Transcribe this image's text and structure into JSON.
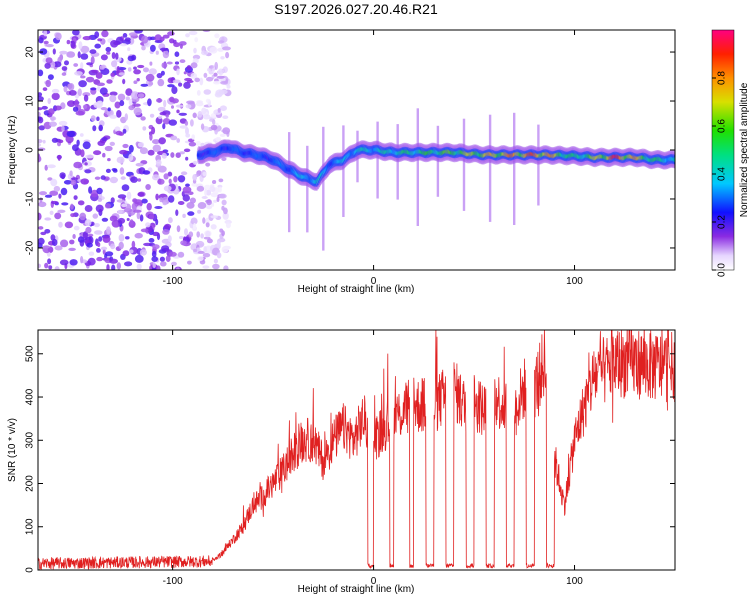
{
  "title": "S197.2026.027.20.46.R21",
  "chart_data": [
    {
      "type": "heatmap",
      "name": "spectrogram",
      "xlabel": "Height of straight line (km)",
      "ylabel": "Frequency (Hz)",
      "xlim": [
        -167,
        150
      ],
      "ylim": [
        -24.5,
        24.5
      ],
      "xticks": [
        -100,
        0,
        100
      ],
      "yticks": [
        -20,
        -10,
        0,
        10,
        20
      ],
      "colorbar": {
        "label": "Normalized spectral amplitude",
        "range": [
          0,
          1
        ],
        "ticks": [
          "0.0",
          "0.2",
          "0.4",
          "0.6",
          "0.8"
        ],
        "tick_values": [
          0.0,
          0.2,
          0.4,
          0.6,
          0.8
        ]
      },
      "noise_region": {
        "x_start": -167,
        "x_end": -80,
        "amplitude": 0.15
      },
      "track": {
        "x": [
          -87,
          -80,
          -72,
          -65,
          -58,
          -50,
          -42,
          -35,
          -28,
          -22,
          -15,
          -8,
          0,
          10,
          20,
          30,
          40,
          55,
          70,
          85,
          100,
          110,
          120,
          130,
          140,
          150
        ],
        "freq": [
          -1,
          -0.5,
          0.5,
          -0.5,
          -1,
          -2,
          -4,
          -5.5,
          -6.5,
          -3,
          -2,
          0,
          0,
          -0.5,
          -0.5,
          -0.5,
          -0.5,
          -1,
          -1,
          -1,
          -1.2,
          -1.5,
          -1.5,
          -1.5,
          -2,
          -2
        ],
        "amplitude": [
          0.25,
          0.3,
          0.3,
          0.3,
          0.3,
          0.3,
          0.35,
          0.4,
          0.45,
          0.35,
          0.4,
          0.45,
          0.45,
          0.5,
          0.55,
          0.6,
          0.65,
          0.75,
          0.85,
          0.9,
          0.5,
          0.7,
          0.95,
          0.8,
          0.55,
          0.45
        ]
      }
    },
    {
      "type": "line",
      "name": "snr",
      "xlabel": "Height of straight line (km)",
      "ylabel": "SNR (10 * v/v)",
      "xlim": [
        -167,
        150
      ],
      "ylim": [
        0,
        555
      ],
      "xticks": [
        -100,
        0,
        100
      ],
      "yticks": [
        0,
        100,
        200,
        300,
        400,
        500
      ],
      "color": "#e02020",
      "series": [
        {
          "name": "SNR envelope",
          "x": [
            -167,
            -80,
            -75,
            -70,
            -65,
            -60,
            -55,
            -50,
            -45,
            -40,
            -35,
            -30,
            -25,
            -20,
            -15,
            -10,
            -5,
            0,
            5,
            10,
            15,
            20,
            25,
            30,
            35,
            40,
            45,
            50,
            55,
            60,
            65,
            70,
            75,
            80,
            85,
            90,
            95,
            100,
            105,
            110,
            115,
            120,
            130,
            140,
            150
          ],
          "y": [
            15,
            20,
            40,
            70,
            100,
            150,
            170,
            200,
            230,
            270,
            300,
            300,
            250,
            300,
            330,
            300,
            350,
            300,
            330,
            350,
            370,
            380,
            380,
            380,
            400,
            420,
            380,
            390,
            370,
            400,
            380,
            370,
            420,
            420,
            480,
            260,
            150,
            300,
            380,
            450,
            460,
            480,
            480,
            470,
            470
          ]
        }
      ],
      "dropouts": [
        {
          "x_start": -3,
          "x_end": 0
        },
        {
          "x_start": 8,
          "x_end": 10
        },
        {
          "x_start": 18,
          "x_end": 20
        },
        {
          "x_start": 26,
          "x_end": 30
        },
        {
          "x_start": 36,
          "x_end": 40
        },
        {
          "x_start": 46,
          "x_end": 50
        },
        {
          "x_start": 56,
          "x_end": 60
        },
        {
          "x_start": 66,
          "x_end": 70
        },
        {
          "x_start": 76,
          "x_end": 80
        },
        {
          "x_start": 86,
          "x_end": 90
        }
      ]
    }
  ]
}
